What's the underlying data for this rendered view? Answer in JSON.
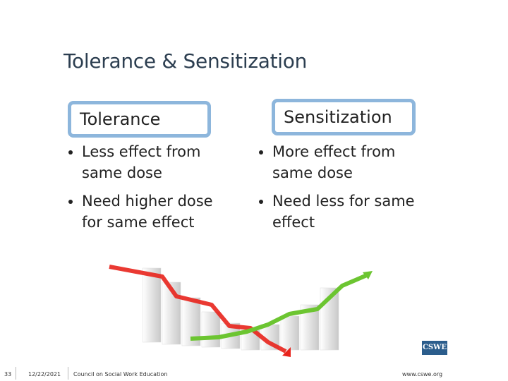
{
  "header": {
    "title": "Tolerance & Sensitization"
  },
  "columns": [
    {
      "heading": "Tolerance",
      "bullets": [
        "Less effect from same dose",
        "Need higher dose for same effect"
      ]
    },
    {
      "heading": "Sensitization",
      "bullets": [
        "More effect from same dose",
        "Need less for same effect"
      ]
    }
  ],
  "footer": {
    "slide_number": "33",
    "date": "12/22/2021",
    "organization": "Council on Social Work Education",
    "website": "www.cswe.org",
    "logo": "CSWE"
  }
}
